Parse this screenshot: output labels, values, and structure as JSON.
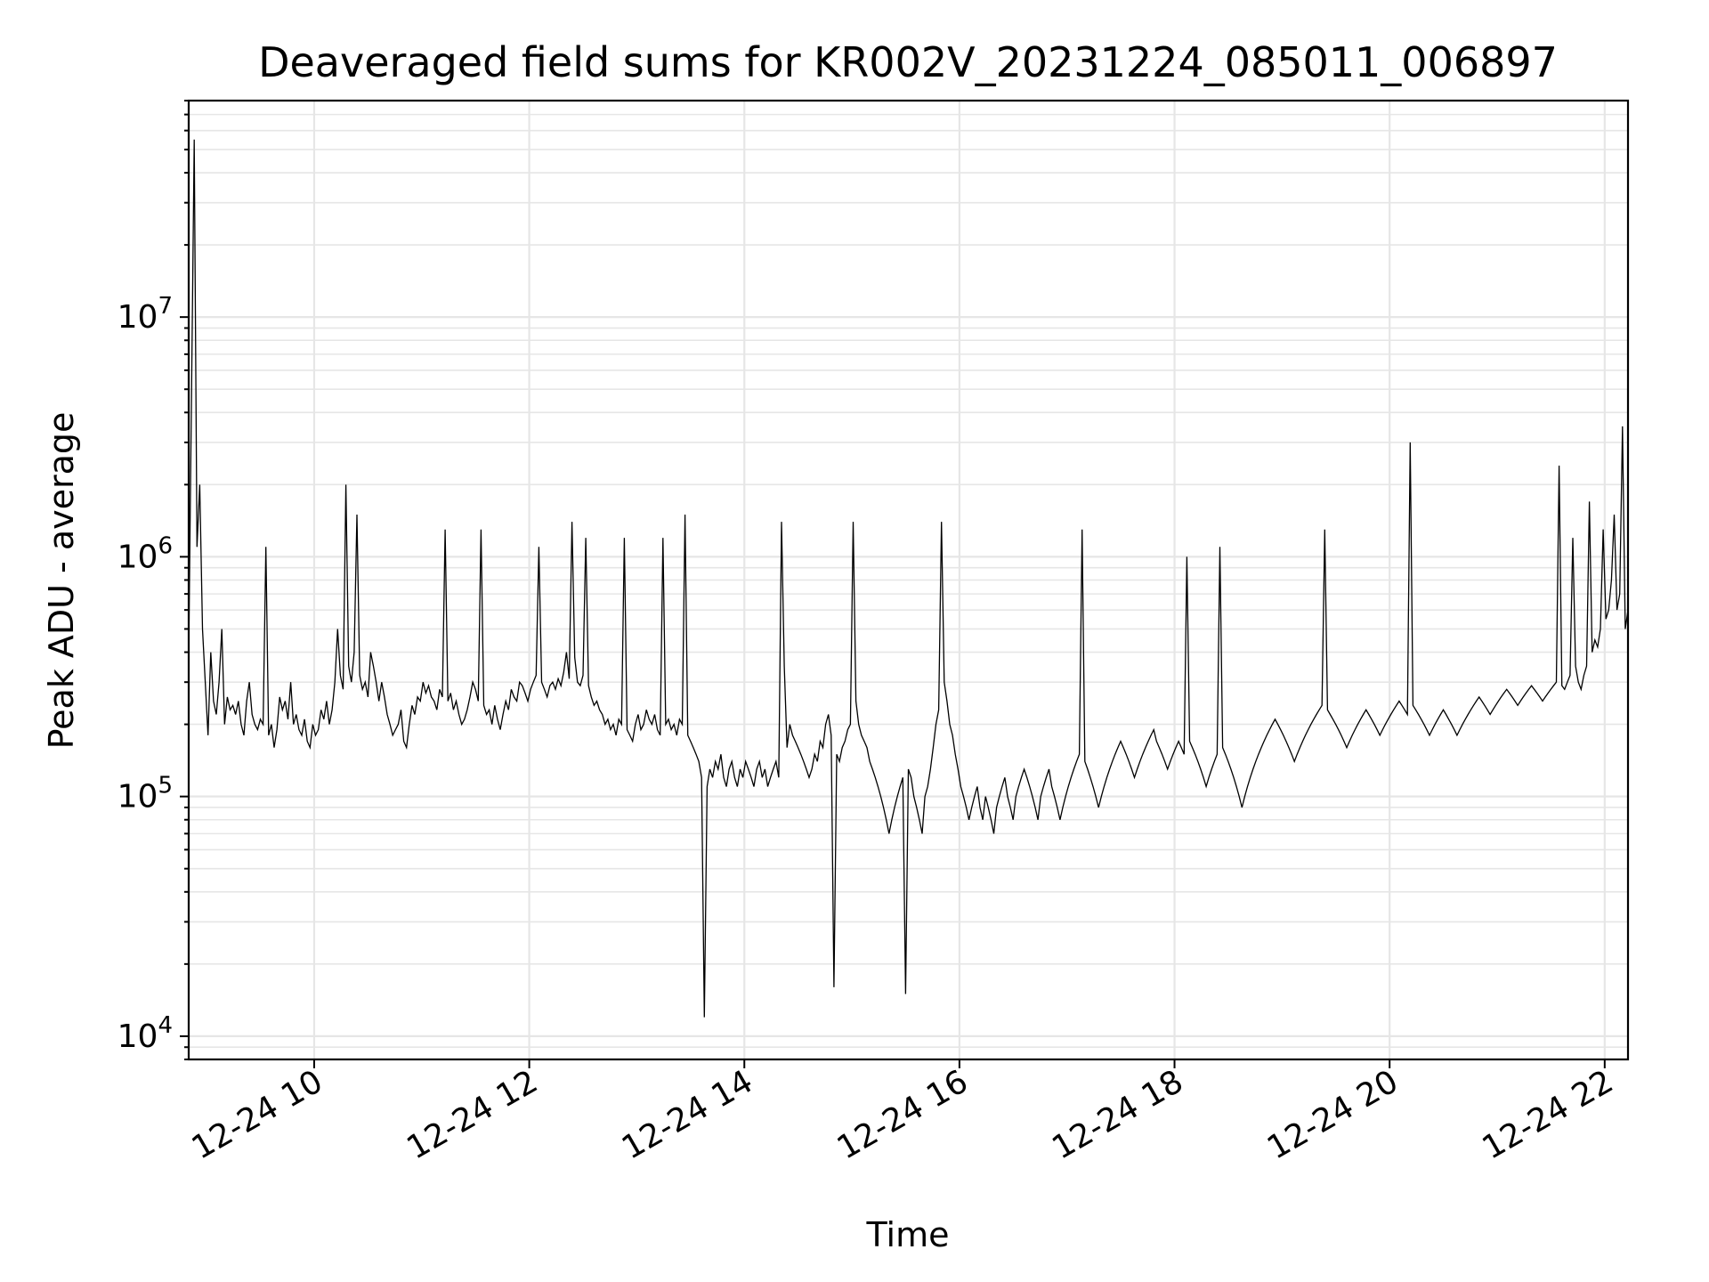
{
  "chart_data": {
    "type": "line",
    "title": "Deaveraged field sums for KR002V_20231224_085011_006897",
    "xlabel": "Time",
    "ylabel": "Peak ADU - average",
    "x_domain": [
      "2023-12-24 08:50",
      "2023-12-24 22:13"
    ],
    "y_scale": "log",
    "ylim": [
      8000,
      80000000
    ],
    "grid": true,
    "x_ticks": [
      "12-24 10",
      "12-24 12",
      "12-24 14",
      "12-24 16",
      "12-24 18",
      "12-24 20",
      "12-24 22"
    ],
    "y_ticks": [
      {
        "base": "10",
        "exp": "4"
      },
      {
        "base": "10",
        "exp": "5"
      },
      {
        "base": "10",
        "exp": "6"
      },
      {
        "base": "10",
        "exp": "7"
      }
    ],
    "series": [
      {
        "color": "#000000",
        "x_start": "2023-12-24 08:50",
        "x_end": "2023-12-24 22:13",
        "values": [
          400000,
          4500000,
          55000000,
          1100000,
          2000000,
          500000,
          300000,
          180000,
          400000,
          250000,
          220000,
          300000,
          500000,
          200000,
          260000,
          230000,
          240000,
          220000,
          250000,
          200000,
          180000,
          250000,
          300000,
          220000,
          200000,
          190000,
          210000,
          200000,
          1100000,
          180000,
          200000,
          160000,
          190000,
          260000,
          230000,
          250000,
          210000,
          300000,
          200000,
          220000,
          190000,
          180000,
          210000,
          170000,
          160000,
          200000,
          180000,
          190000,
          230000,
          210000,
          250000,
          200000,
          230000,
          300000,
          500000,
          320000,
          280000,
          2000000,
          350000,
          300000,
          400000,
          1500000,
          320000,
          280000,
          300000,
          260000,
          400000,
          350000,
          300000,
          250000,
          300000,
          260000,
          220000,
          200000,
          180000,
          190000,
          200000,
          230000,
          170000,
          160000,
          200000,
          240000,
          220000,
          260000,
          250000,
          300000,
          270000,
          290000,
          260000,
          250000,
          230000,
          280000,
          260000,
          1300000,
          250000,
          270000,
          230000,
          250000,
          220000,
          200000,
          210000,
          230000,
          260000,
          300000,
          280000,
          250000,
          1300000,
          240000,
          220000,
          230000,
          200000,
          240000,
          210000,
          190000,
          220000,
          250000,
          230000,
          280000,
          260000,
          250000,
          300000,
          290000,
          270000,
          250000,
          280000,
          300000,
          320000,
          1100000,
          300000,
          280000,
          260000,
          290000,
          300000,
          280000,
          310000,
          290000,
          330000,
          400000,
          310000,
          1400000,
          380000,
          300000,
          290000,
          320000,
          1200000,
          290000,
          260000,
          240000,
          250000,
          230000,
          220000,
          200000,
          210000,
          190000,
          200000,
          180000,
          210000,
          200000,
          1200000,
          190000,
          180000,
          170000,
          200000,
          220000,
          190000,
          200000,
          230000,
          210000,
          200000,
          220000,
          190000,
          180000,
          1200000,
          200000,
          210000,
          190000,
          200000,
          180000,
          210000,
          200000,
          1500000,
          180000,
          170000,
          160000,
          150000,
          140000,
          120000,
          12000,
          110000,
          130000,
          120000,
          140000,
          130000,
          150000,
          120000,
          110000,
          130000,
          140000,
          120000,
          110000,
          130000,
          120000,
          140000,
          130000,
          120000,
          110000,
          130000,
          140000,
          120000,
          130000,
          110000,
          120000,
          130000,
          140000,
          120000,
          1400000,
          350000,
          160000,
          200000,
          180000,
          170000,
          160000,
          150000,
          140000,
          130000,
          120000,
          130000,
          150000,
          140000,
          170000,
          160000,
          200000,
          220000,
          180000,
          16000,
          150000,
          140000,
          160000,
          170000,
          190000,
          200000,
          1400000,
          250000,
          200000,
          180000,
          170000,
          160000,
          140000,
          130000,
          120000,
          110000,
          100000,
          90000,
          80000,
          70000,
          80000,
          90000,
          100000,
          110000,
          120000,
          15000,
          130000,
          120000,
          100000,
          90000,
          80000,
          70000,
          100000,
          110000,
          130000,
          160000,
          200000,
          230000,
          1400000,
          300000,
          250000,
          200000,
          180000,
          150000,
          130000,
          110000,
          100000,
          90000,
          80000,
          90000,
          100000,
          110000,
          90000,
          80000,
          100000,
          90000,
          80000,
          70000,
          90000,
          100000,
          110000,
          120000,
          100000,
          90000,
          80000,
          100000,
          110000,
          120000,
          130000,
          120000,
          110000,
          100000,
          90000,
          80000,
          100000,
          110000,
          120000,
          130000,
          110000,
          100000,
          90000,
          80000,
          90000,
          100000,
          110000,
          120000,
          130000,
          140000,
          150000,
          1300000,
          140000,
          130000,
          120000,
          110000,
          100000,
          90000,
          100000,
          110000,
          120000,
          130000,
          140000,
          150000,
          160000,
          170000,
          160000,
          150000,
          140000,
          130000,
          120000,
          130000,
          140000,
          150000,
          160000,
          170000,
          180000,
          190000,
          170000,
          160000,
          150000,
          140000,
          130000,
          140000,
          150000,
          160000,
          170000,
          160000,
          150000,
          1000000,
          170000,
          160000,
          150000,
          140000,
          130000,
          120000,
          110000,
          120000,
          130000,
          140000,
          150000,
          1100000,
          160000,
          150000,
          140000,
          130000,
          120000,
          110000,
          100000,
          90000,
          100000,
          110000,
          120000,
          130000,
          140000,
          150000,
          160000,
          170000,
          180000,
          190000,
          200000,
          210000,
          200000,
          190000,
          180000,
          170000,
          160000,
          150000,
          140000,
          150000,
          160000,
          170000,
          180000,
          190000,
          200000,
          210000,
          220000,
          230000,
          240000,
          1300000,
          230000,
          220000,
          210000,
          200000,
          190000,
          180000,
          170000,
          160000,
          170000,
          180000,
          190000,
          200000,
          210000,
          220000,
          230000,
          220000,
          210000,
          200000,
          190000,
          180000,
          190000,
          200000,
          210000,
          220000,
          230000,
          240000,
          250000,
          240000,
          230000,
          220000,
          3000000,
          240000,
          230000,
          220000,
          210000,
          200000,
          190000,
          180000,
          190000,
          200000,
          210000,
          220000,
          230000,
          220000,
          210000,
          200000,
          190000,
          180000,
          190000,
          200000,
          210000,
          220000,
          230000,
          240000,
          250000,
          260000,
          250000,
          240000,
          230000,
          220000,
          230000,
          240000,
          250000,
          260000,
          270000,
          280000,
          270000,
          260000,
          250000,
          240000,
          250000,
          260000,
          270000,
          280000,
          290000,
          280000,
          270000,
          260000,
          250000,
          260000,
          270000,
          280000,
          290000,
          300000,
          2400000,
          290000,
          280000,
          300000,
          320000,
          1200000,
          350000,
          300000,
          280000,
          320000,
          350000,
          1700000,
          400000,
          450000,
          420000,
          500000,
          1300000,
          550000,
          600000,
          800000,
          1500000,
          600000,
          700000,
          3500000,
          500000,
          600000
        ]
      }
    ]
  }
}
